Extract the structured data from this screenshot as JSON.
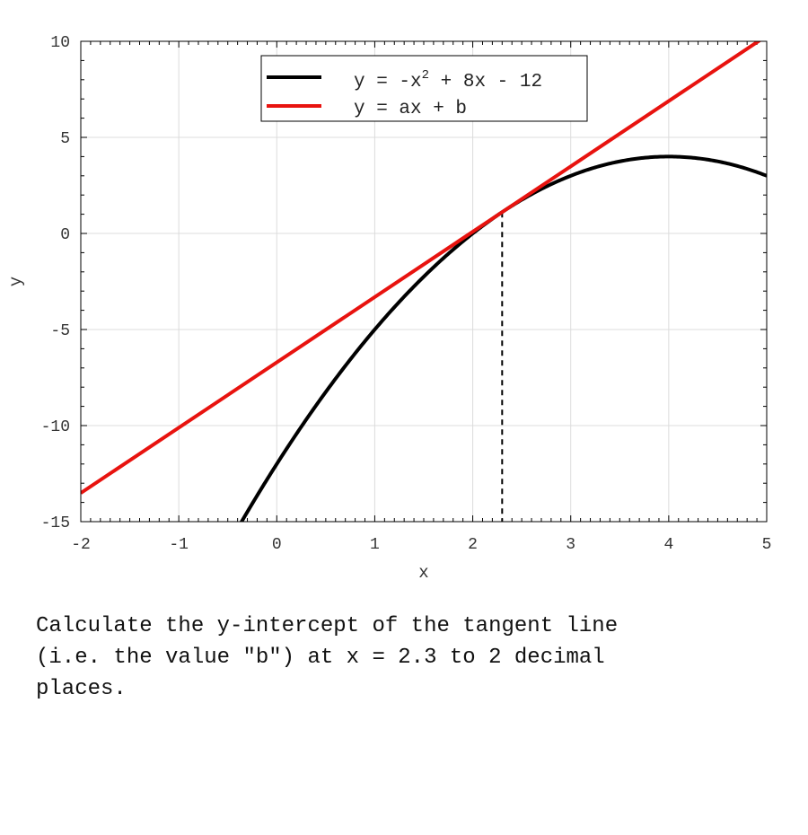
{
  "chart_data": {
    "type": "line",
    "xlabel": "x",
    "ylabel": "y",
    "xlim": [
      -2,
      5
    ],
    "ylim": [
      -15,
      10
    ],
    "xticks": [
      "-2",
      "-1",
      "0",
      "1",
      "2",
      "3",
      "4",
      "5"
    ],
    "yticks": [
      "-15",
      "-10",
      "-5",
      "0",
      "5",
      "10"
    ],
    "grid": true,
    "legend_position": "top-center",
    "series": [
      {
        "name": "y = -x^2 + 8x - 12",
        "legend_main": "y = -x",
        "legend_sup": "2",
        "legend_rest": " + 8x - 12",
        "color": "#000000",
        "kind": "parabola",
        "coefficients": [
          -1,
          8,
          -12
        ],
        "x_range": [
          -2,
          5
        ]
      },
      {
        "name": "y = ax + b",
        "color": "#e8130f",
        "kind": "line",
        "slope": 3.4,
        "intercept": -6.71,
        "x_range": [
          -2,
          5
        ]
      }
    ],
    "marker_line": {
      "x": 2.3,
      "style": "dashed",
      "color": "#000000"
    }
  },
  "question": "Calculate the y-intercept of the tangent line\n(i.e. the value \"b\") at x = 2.3 to 2 decimal\nplaces."
}
